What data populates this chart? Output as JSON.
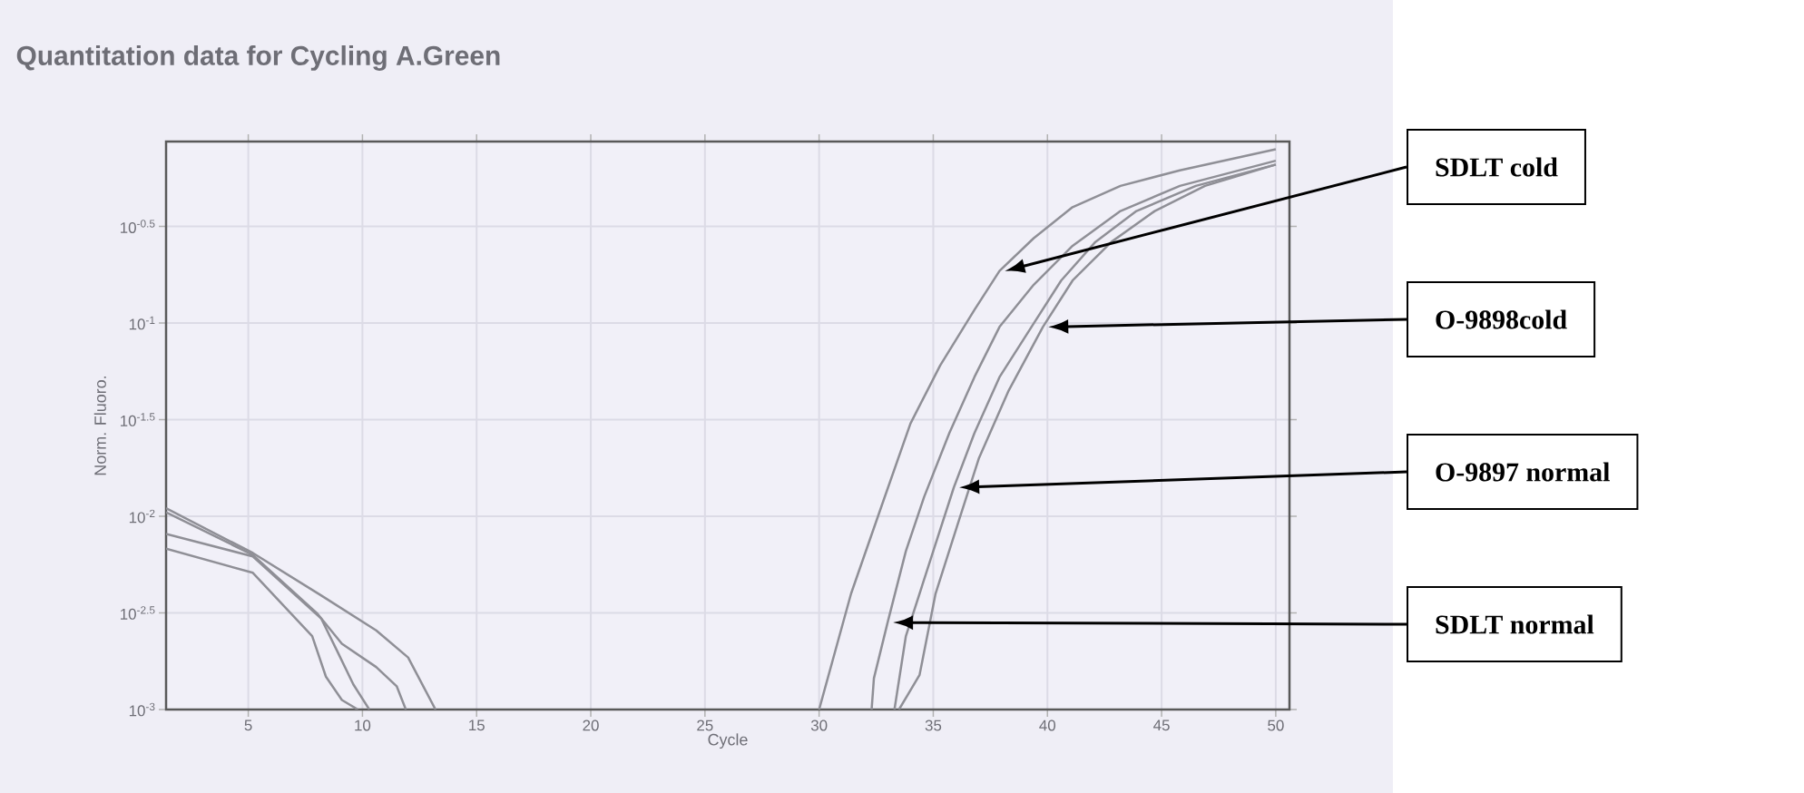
{
  "chart_data": {
    "type": "line",
    "title": "Quantitation data for Cycling A.Green",
    "xlabel": "Cycle",
    "ylabel": "Norm. Fluoro.",
    "log": "y",
    "grid": true,
    "marker": "none",
    "line_style": "solid",
    "xlim": [
      1.4,
      50.6
    ],
    "xticks": [
      5,
      10,
      15,
      20,
      25,
      30,
      35,
      40,
      45,
      50
    ],
    "ylim": [
      0.001,
      0.87
    ],
    "yticks": [
      {
        "value": 0.3162,
        "label": "10$^{-0.5}$"
      },
      {
        "value": 0.1,
        "label": "10$^{-1}$"
      },
      {
        "value": 0.03162,
        "label": "10$^{-1.5}$"
      },
      {
        "value": 0.01,
        "label": "10$^{-2}$"
      },
      {
        "value": 0.003162,
        "label": "10$^{-2.5}$"
      },
      {
        "value": 0.001,
        "label": "10$^{-3}$"
      }
    ],
    "series": [
      {
        "name": "SDLT cold",
        "color": "#8f8f96",
        "x": [
          1.4,
          5.2,
          8.2,
          10.6,
          12.0,
          13.2,
          20,
          30,
          31.4,
          32.7,
          34.0,
          35.3,
          36.8,
          37.9,
          39.4,
          41.1,
          43.2,
          45.8,
          50
        ],
        "values": [
          0.011,
          0.00646,
          0.00389,
          0.00257,
          0.00186,
          0.001,
          null,
          0.001,
          0.00398,
          0.011,
          0.0302,
          0.0603,
          0.117,
          0.186,
          0.275,
          0.398,
          0.513,
          0.617,
          0.794
        ]
      },
      {
        "name": "O-9898cold",
        "color": "#8f8f96",
        "x": [
          1.4,
          5.2,
          7.8,
          8.4,
          9.1,
          9.8,
          20,
          33.5,
          34.4,
          35.1,
          36.1,
          37.0,
          38.3,
          39.8,
          41.1,
          42.8,
          44.7,
          46.9,
          50
        ],
        "values": [
          0.0068,
          0.0051,
          0.0024,
          0.00148,
          0.00112,
          0.001,
          null,
          0.001,
          0.00151,
          0.00398,
          0.00933,
          0.02,
          0.0447,
          0.0955,
          0.166,
          0.263,
          0.38,
          0.513,
          0.661
        ]
      },
      {
        "name": "O-9897 normal",
        "color": "#8f8f96",
        "x": [
          1.4,
          5.2,
          8.2,
          8.9,
          9.6,
          10.3,
          20,
          33.3,
          33.8,
          35.0,
          35.9,
          36.8,
          37.9,
          39.3,
          40.6,
          42.1,
          43.9,
          46.5,
          50
        ],
        "values": [
          0.0081,
          0.0062,
          0.00295,
          0.002,
          0.00135,
          0.001,
          null,
          0.001,
          0.0024,
          0.00661,
          0.0141,
          0.0269,
          0.0525,
          0.0955,
          0.166,
          0.263,
          0.38,
          0.513,
          0.661
        ]
      },
      {
        "name": "SDLT normal",
        "color": "#8f8f96",
        "x": [
          1.4,
          5.2,
          8.0,
          9.1,
          10.6,
          11.5,
          11.9,
          20,
          32.3,
          32.4,
          33.0,
          33.8,
          34.6,
          35.7,
          36.8,
          37.9,
          39.4,
          41.1,
          43.2,
          45.8,
          50
        ],
        "values": [
          0.0105,
          0.00631,
          0.00316,
          0.00219,
          0.00166,
          0.00132,
          0.001,
          null,
          0.001,
          0.00145,
          0.00282,
          0.00661,
          0.0126,
          0.0269,
          0.0525,
          0.0955,
          0.158,
          0.251,
          0.38,
          0.513,
          0.692
        ]
      }
    ]
  }
}
